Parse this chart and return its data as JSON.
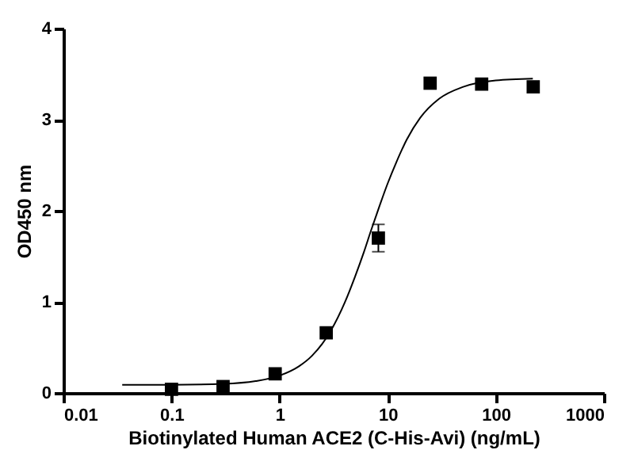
{
  "chart_data": {
    "type": "scatter",
    "xlabel": "Biotinylated Human ACE2 (C-His-Avi) (ng/mL)",
    "ylabel": "OD450 nm",
    "log": "x",
    "xlim": [
      0.01,
      1000
    ],
    "xticks": [
      0.01,
      0.1,
      1,
      10,
      100,
      1000
    ],
    "ylim": [
      0,
      4
    ],
    "yticks": [
      0,
      1,
      2,
      3,
      4
    ],
    "grid": false,
    "marker": "square",
    "series": [
      {
        "color": "#000000",
        "x": [
          0.1,
          0.3,
          0.91,
          2.7,
          8.2,
          24.7,
          74,
          222
        ],
        "values": [
          0.04,
          0.07,
          0.21,
          0.66,
          1.7,
          3.4,
          3.39,
          3.36
        ],
        "errors": [
          null,
          null,
          null,
          null,
          0.15,
          null,
          null,
          null
        ]
      },
      {
        "type": "line",
        "color": "#000000",
        "marker": "none",
        "line_style": "solid",
        "x": [
          0.035,
          0.1,
          0.3,
          0.6,
          1,
          1.5,
          2,
          3,
          4,
          5,
          6,
          7,
          8,
          10,
          12,
          15,
          20,
          30,
          50,
          100,
          220
        ],
        "values": [
          0.09,
          0.09,
          0.1,
          0.13,
          0.19,
          0.29,
          0.41,
          0.69,
          0.99,
          1.28,
          1.54,
          1.78,
          1.98,
          2.3,
          2.53,
          2.78,
          3.02,
          3.23,
          3.36,
          3.43,
          3.45
        ]
      }
    ]
  }
}
